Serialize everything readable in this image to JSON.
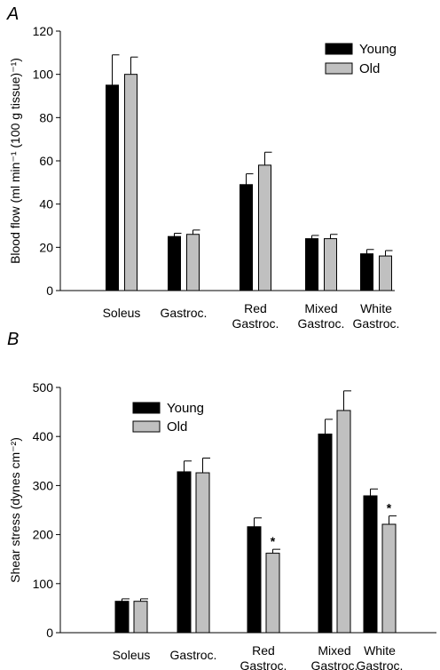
{
  "chart_data": [
    {
      "type": "bar",
      "panel_label": "A",
      "title": "",
      "ylabel": "Blood flow (ml min⁻¹ (100 g tissue)⁻¹)",
      "xlabel": "",
      "ylim": [
        0,
        120
      ],
      "yticks": [
        0,
        20,
        40,
        60,
        80,
        100,
        120
      ],
      "legend_position": "top-right",
      "categories": [
        "Soleus",
        "Gastroc.",
        "Red\nGastroc.",
        "Mixed\nGastroc.",
        "White\nGastroc."
      ],
      "series": [
        {
          "name": "Young",
          "color": "#000000",
          "values": [
            95,
            25,
            49,
            24,
            17
          ],
          "errors": [
            14,
            1.5,
            5,
            1.5,
            2
          ],
          "significant": [
            false,
            false,
            false,
            false,
            false
          ]
        },
        {
          "name": "Old",
          "color": "#c0c0c0",
          "values": [
            100,
            26,
            58,
            24,
            16
          ],
          "errors": [
            8,
            2,
            6,
            2,
            2.5
          ],
          "significant": [
            false,
            false,
            false,
            false,
            false
          ]
        }
      ]
    },
    {
      "type": "bar",
      "panel_label": "B",
      "title": "",
      "ylabel": "Shear stress (dynes cm⁻²)",
      "xlabel": "",
      "ylim": [
        0,
        500
      ],
      "yticks": [
        0,
        100,
        200,
        300,
        400,
        500
      ],
      "legend_position": "top-left",
      "significance_marker": "*",
      "categories": [
        "Soleus",
        "Gastroc.",
        "Red\nGastroc.",
        "Mixed\nGastroc.",
        "White\nGastroc."
      ],
      "series": [
        {
          "name": "Young",
          "color": "#000000",
          "values": [
            64,
            328,
            216,
            405,
            279
          ],
          "errors": [
            5,
            22,
            18,
            30,
            14
          ],
          "significant": [
            false,
            false,
            false,
            false,
            false
          ]
        },
        {
          "name": "Old",
          "color": "#c0c0c0",
          "values": [
            64,
            326,
            162,
            453,
            221
          ],
          "errors": [
            5,
            30,
            8,
            40,
            17
          ],
          "significant": [
            false,
            false,
            true,
            false,
            true
          ]
        }
      ]
    }
  ]
}
